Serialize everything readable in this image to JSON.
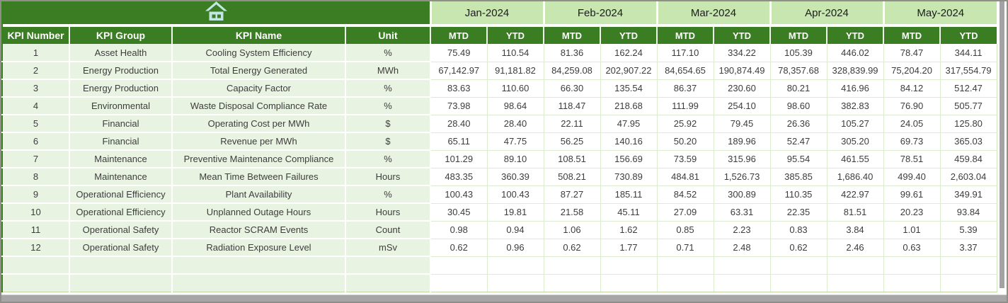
{
  "window": {
    "home_icon": "home-icon"
  },
  "colors": {
    "dark_green": "#3a7d23",
    "month_green": "#c8e6b0",
    "row_green": "#e9f3e1",
    "grid_green": "#dcecd0",
    "header_text": "#ffffff",
    "icon_fill": "#c2e7e2",
    "scrollbar_gray": "#a3a3a3"
  },
  "table": {
    "left_headers": [
      "KPI Number",
      "KPI Group",
      "KPI Name",
      "Unit"
    ],
    "months": [
      "Jan-2024",
      "Feb-2024",
      "Mar-2024",
      "Apr-2024",
      "May-2024"
    ],
    "period_headers": [
      "MTD",
      "YTD"
    ],
    "rows": [
      {
        "kpi_number": "1",
        "kpi_group": "Asset Health",
        "kpi_name": "Cooling System Efficiency",
        "unit": "%",
        "values": [
          "75.49",
          "110.54",
          "81.36",
          "162.24",
          "117.10",
          "334.22",
          "105.39",
          "446.02",
          "78.47",
          "344.11"
        ]
      },
      {
        "kpi_number": "2",
        "kpi_group": "Energy Production",
        "kpi_name": "Total Energy Generated",
        "unit": "MWh",
        "values": [
          "67,142.97",
          "91,181.82",
          "84,259.08",
          "202,907.22",
          "84,654.65",
          "190,874.49",
          "78,357.68",
          "328,839.99",
          "75,204.20",
          "317,554.79"
        ]
      },
      {
        "kpi_number": "3",
        "kpi_group": "Energy Production",
        "kpi_name": "Capacity Factor",
        "unit": "%",
        "values": [
          "83.63",
          "110.60",
          "66.30",
          "135.54",
          "86.37",
          "230.60",
          "80.21",
          "416.96",
          "84.12",
          "512.47"
        ]
      },
      {
        "kpi_number": "4",
        "kpi_group": "Environmental",
        "kpi_name": "Waste Disposal Compliance Rate",
        "unit": "%",
        "values": [
          "73.98",
          "98.64",
          "118.47",
          "218.68",
          "111.99",
          "254.10",
          "98.60",
          "382.83",
          "76.90",
          "505.77"
        ]
      },
      {
        "kpi_number": "5",
        "kpi_group": "Financial",
        "kpi_name": "Operating Cost per MWh",
        "unit": "$",
        "values": [
          "28.40",
          "28.40",
          "22.11",
          "47.95",
          "25.92",
          "79.45",
          "26.36",
          "105.27",
          "24.05",
          "125.80"
        ]
      },
      {
        "kpi_number": "6",
        "kpi_group": "Financial",
        "kpi_name": "Revenue per MWh",
        "unit": "$",
        "values": [
          "65.11",
          "47.75",
          "56.25",
          "140.16",
          "50.20",
          "189.96",
          "52.47",
          "305.20",
          "69.73",
          "365.03"
        ]
      },
      {
        "kpi_number": "7",
        "kpi_group": "Maintenance",
        "kpi_name": "Preventive Maintenance Compliance",
        "unit": "%",
        "values": [
          "101.29",
          "89.10",
          "108.51",
          "156.69",
          "73.59",
          "315.96",
          "95.54",
          "461.55",
          "78.51",
          "459.84"
        ]
      },
      {
        "kpi_number": "8",
        "kpi_group": "Maintenance",
        "kpi_name": "Mean Time Between Failures",
        "unit": "Hours",
        "values": [
          "483.35",
          "360.39",
          "508.21",
          "730.89",
          "484.81",
          "1,526.73",
          "385.85",
          "1,686.40",
          "499.40",
          "2,603.04"
        ]
      },
      {
        "kpi_number": "9",
        "kpi_group": "Operational Efficiency",
        "kpi_name": "Plant Availability",
        "unit": "%",
        "values": [
          "100.43",
          "100.43",
          "87.27",
          "185.11",
          "84.52",
          "300.89",
          "110.35",
          "422.97",
          "99.61",
          "349.91"
        ]
      },
      {
        "kpi_number": "10",
        "kpi_group": "Operational Efficiency",
        "kpi_name": "Unplanned Outage Hours",
        "unit": "Hours",
        "values": [
          "30.45",
          "19.81",
          "21.58",
          "45.11",
          "27.09",
          "63.31",
          "22.35",
          "81.51",
          "20.23",
          "93.84"
        ]
      },
      {
        "kpi_number": "11",
        "kpi_group": "Operational Safety",
        "kpi_name": "Reactor SCRAM Events",
        "unit": "Count",
        "values": [
          "0.98",
          "0.94",
          "1.06",
          "1.62",
          "0.85",
          "2.23",
          "0.83",
          "3.84",
          "1.01",
          "5.39"
        ]
      },
      {
        "kpi_number": "12",
        "kpi_group": "Operational Safety",
        "kpi_name": "Radiation Exposure Level",
        "unit": "mSv",
        "values": [
          "0.62",
          "0.96",
          "0.62",
          "1.77",
          "0.71",
          "2.48",
          "0.62",
          "2.46",
          "0.63",
          "3.37"
        ]
      }
    ],
    "empty_row_count": 2
  }
}
